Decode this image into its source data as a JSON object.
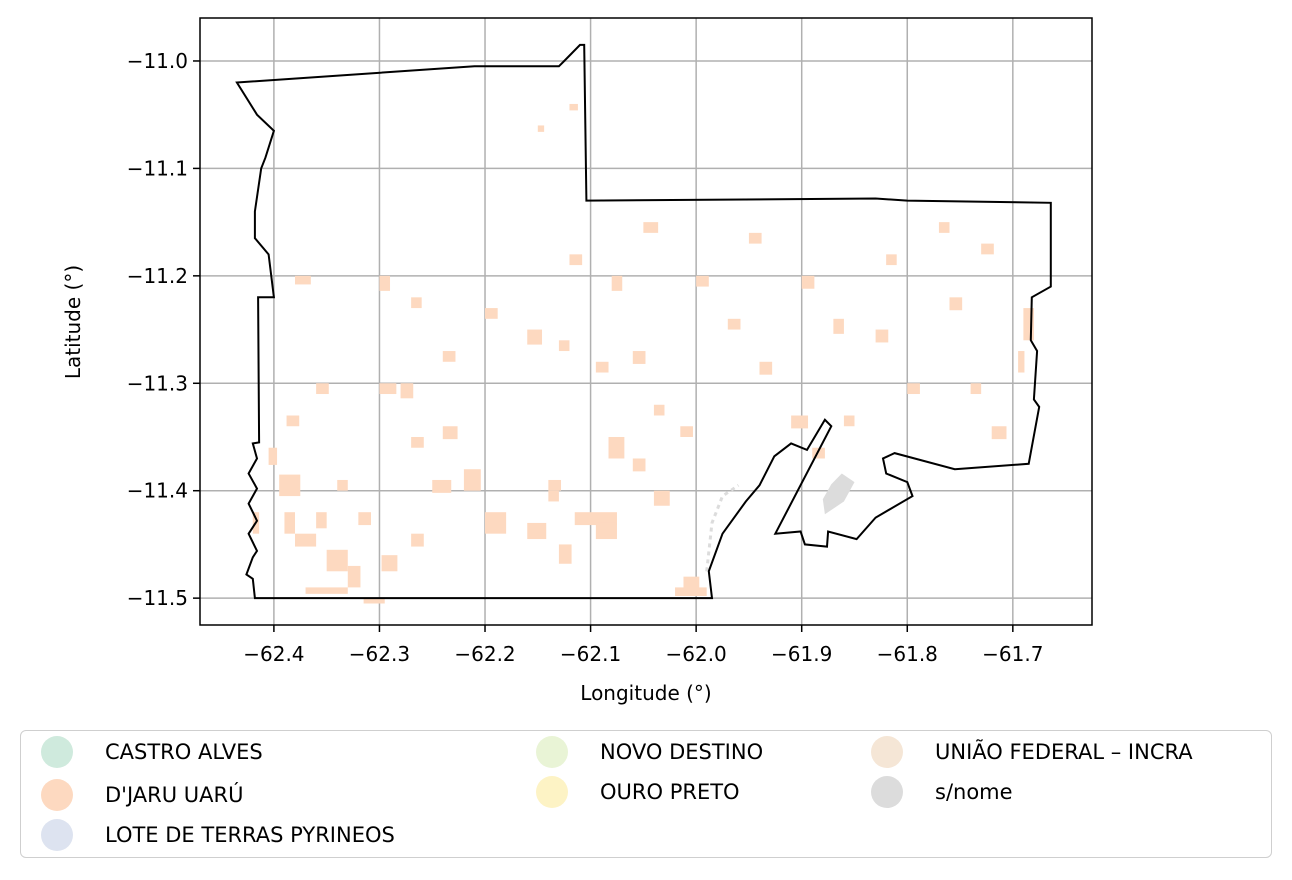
{
  "chart_data": {
    "type": "map",
    "xlabel": "Longitude (°)",
    "ylabel": "Latitude (°)",
    "xlim": [
      -62.47,
      -61.625
    ],
    "ylim": [
      -11.525,
      -10.96
    ],
    "xticks": [
      -62.4,
      -62.3,
      -62.2,
      -62.1,
      -62.0,
      -61.9,
      -61.8,
      -61.7
    ],
    "xtick_labels": [
      "−62.4",
      "−62.3",
      "−62.2",
      "−62.1",
      "−62.0",
      "−61.9",
      "−61.8",
      "−61.7"
    ],
    "yticks": [
      -11.0,
      -11.1,
      -11.2,
      -11.3,
      -11.4,
      -11.5
    ],
    "ytick_labels": [
      "−11.0",
      "−11.1",
      "−11.2",
      "−11.3",
      "−11.4",
      "−11.5"
    ],
    "grid": true,
    "legend_position": "below",
    "boundary": [
      [
        -62.435,
        -11.02
      ],
      [
        -62.21,
        -11.005
      ],
      [
        -62.13,
        -11.005
      ],
      [
        -62.125,
        -11.0
      ],
      [
        -62.11,
        -10.985
      ],
      [
        -62.106,
        -10.985
      ],
      [
        -62.104,
        -11.13
      ],
      [
        -61.83,
        -11.128
      ],
      [
        -61.8,
        -11.13
      ],
      [
        -61.664,
        -11.132
      ],
      [
        -61.664,
        -11.21
      ],
      [
        -61.682,
        -11.22
      ],
      [
        -61.683,
        -11.26
      ],
      [
        -61.677,
        -11.27
      ],
      [
        -61.68,
        -11.315
      ],
      [
        -61.675,
        -11.322
      ],
      [
        -61.685,
        -11.375
      ],
      [
        -61.755,
        -11.38
      ],
      [
        -61.812,
        -11.365
      ],
      [
        -61.823,
        -11.37
      ],
      [
        -61.82,
        -11.384
      ],
      [
        -61.8,
        -11.392
      ],
      [
        -61.795,
        -11.405
      ],
      [
        -61.83,
        -11.425
      ],
      [
        -61.848,
        -11.445
      ],
      [
        -61.875,
        -11.438
      ],
      [
        -61.876,
        -11.452
      ],
      [
        -61.897,
        -11.45
      ],
      [
        -61.901,
        -11.438
      ],
      [
        -61.925,
        -11.44
      ],
      [
        -61.872,
        -11.34
      ],
      [
        -61.878,
        -11.334
      ],
      [
        -61.895,
        -11.362
      ],
      [
        -61.91,
        -11.356
      ],
      [
        -61.926,
        -11.368
      ],
      [
        -61.94,
        -11.395
      ],
      [
        -61.953,
        -11.41
      ],
      [
        -61.975,
        -11.44
      ],
      [
        -61.988,
        -11.475
      ],
      [
        -61.985,
        -11.5
      ],
      [
        -62.418,
        -11.5
      ],
      [
        -62.42,
        -11.482
      ],
      [
        -62.426,
        -11.478
      ],
      [
        -62.42,
        -11.462
      ],
      [
        -62.416,
        -11.456
      ],
      [
        -62.424,
        -11.44
      ],
      [
        -62.416,
        -11.428
      ],
      [
        -62.424,
        -11.412
      ],
      [
        -62.416,
        -11.398
      ],
      [
        -62.424,
        -11.384
      ],
      [
        -62.416,
        -11.37
      ],
      [
        -62.42,
        -11.356
      ],
      [
        -62.414,
        -11.355
      ],
      [
        -62.415,
        -11.22
      ],
      [
        -62.4,
        -11.22
      ],
      [
        -62.405,
        -11.18
      ],
      [
        -62.418,
        -11.165
      ],
      [
        -62.418,
        -11.14
      ],
      [
        -62.412,
        -11.1
      ],
      [
        -62.408,
        -11.09
      ],
      [
        -62.4,
        -11.065
      ],
      [
        -62.416,
        -11.05
      ]
    ],
    "river_line": [
      [
        -61.99,
        -11.475
      ],
      [
        -61.985,
        -11.43
      ],
      [
        -61.975,
        -11.405
      ],
      [
        -61.96,
        -11.395
      ]
    ],
    "snome_patch": [
      [
        -61.862,
        -11.384
      ],
      [
        -61.85,
        -11.392
      ],
      [
        -61.86,
        -11.41
      ],
      [
        -61.878,
        -11.422
      ],
      [
        -61.88,
        -11.408
      ],
      [
        -61.872,
        -11.394
      ]
    ],
    "djaru_patches": [
      [
        -62.405,
        -11.36,
        0.008,
        0.016
      ],
      [
        -62.395,
        -11.385,
        0.02,
        0.02
      ],
      [
        -62.39,
        -11.42,
        0.01,
        0.02
      ],
      [
        -62.388,
        -11.33,
        0.012,
        0.01
      ],
      [
        -62.36,
        -11.42,
        0.01,
        0.015
      ],
      [
        -62.35,
        -11.455,
        0.02,
        0.02
      ],
      [
        -62.37,
        -11.49,
        0.04,
        0.006
      ],
      [
        -62.33,
        -11.47,
        0.012,
        0.02
      ],
      [
        -62.315,
        -11.5,
        0.02,
        0.005
      ],
      [
        -62.298,
        -11.46,
        0.015,
        0.015
      ],
      [
        -62.3,
        -11.3,
        0.016,
        0.01
      ],
      [
        -62.28,
        -11.3,
        0.012,
        0.014
      ],
      [
        -62.24,
        -11.34,
        0.014,
        0.012
      ],
      [
        -62.22,
        -11.38,
        0.016,
        0.02
      ],
      [
        -62.2,
        -11.42,
        0.02,
        0.02
      ],
      [
        -62.16,
        -11.43,
        0.018,
        0.015
      ],
      [
        -62.14,
        -11.4,
        0.01,
        0.01
      ],
      [
        -62.13,
        -11.45,
        0.012,
        0.018
      ],
      [
        -62.115,
        -11.42,
        0.04,
        0.012
      ],
      [
        -62.095,
        -11.43,
        0.02,
        0.015
      ],
      [
        -62.083,
        -11.35,
        0.015,
        0.02
      ],
      [
        -62.06,
        -11.37,
        0.012,
        0.012
      ],
      [
        -62.04,
        -11.4,
        0.015,
        0.014
      ],
      [
        -62.02,
        -11.49,
        0.03,
        0.008
      ],
      [
        -62.012,
        -11.48,
        0.015,
        0.012
      ],
      [
        -62.14,
        -11.39,
        0.012,
        0.01
      ],
      [
        -62.095,
        -11.28,
        0.012,
        0.01
      ],
      [
        -62.06,
        -11.27,
        0.012,
        0.012
      ],
      [
        -62.04,
        -11.32,
        0.01,
        0.01
      ],
      [
        -62.015,
        -11.34,
        0.012,
        0.01
      ],
      [
        -62.27,
        -11.35,
        0.012,
        0.01
      ],
      [
        -62.25,
        -11.39,
        0.018,
        0.012
      ],
      [
        -62.34,
        -11.39,
        0.01,
        0.01
      ],
      [
        -62.36,
        -11.3,
        0.012,
        0.01
      ],
      [
        -62.38,
        -11.2,
        0.015,
        0.008
      ],
      [
        -62.3,
        -11.2,
        0.01,
        0.014
      ],
      [
        -62.27,
        -11.22,
        0.01,
        0.01
      ],
      [
        -62.24,
        -11.27,
        0.012,
        0.01
      ],
      [
        -62.2,
        -11.23,
        0.012,
        0.01
      ],
      [
        -62.16,
        -11.25,
        0.014,
        0.014
      ],
      [
        -62.13,
        -11.26,
        0.01,
        0.01
      ],
      [
        -62.12,
        -11.18,
        0.012,
        0.01
      ],
      [
        -62.08,
        -11.2,
        0.01,
        0.014
      ],
      [
        -62.05,
        -11.15,
        0.014,
        0.01
      ],
      [
        -62.0,
        -11.2,
        0.012,
        0.01
      ],
      [
        -61.97,
        -11.24,
        0.012,
        0.01
      ],
      [
        -61.94,
        -11.28,
        0.012,
        0.012
      ],
      [
        -61.91,
        -11.33,
        0.016,
        0.012
      ],
      [
        -61.89,
        -11.36,
        0.012,
        0.01
      ],
      [
        -61.86,
        -11.33,
        0.01,
        0.01
      ],
      [
        -61.83,
        -11.25,
        0.012,
        0.012
      ],
      [
        -61.8,
        -11.3,
        0.012,
        0.01
      ],
      [
        -61.76,
        -11.22,
        0.012,
        0.012
      ],
      [
        -61.74,
        -11.3,
        0.01,
        0.01
      ],
      [
        -61.72,
        -11.34,
        0.014,
        0.012
      ],
      [
        -61.69,
        -11.23,
        0.01,
        0.03
      ],
      [
        -61.695,
        -11.27,
        0.006,
        0.02
      ],
      [
        -61.73,
        -11.17,
        0.012,
        0.01
      ],
      [
        -61.77,
        -11.15,
        0.01,
        0.01
      ],
      [
        -61.82,
        -11.18,
        0.01,
        0.01
      ],
      [
        -61.95,
        -11.16,
        0.012,
        0.01
      ],
      [
        -61.9,
        -11.2,
        0.012,
        0.012
      ],
      [
        -61.87,
        -11.24,
        0.01,
        0.014
      ],
      [
        -62.15,
        -11.06,
        0.006,
        0.006
      ],
      [
        -62.12,
        -11.04,
        0.008,
        0.006
      ],
      [
        -62.42,
        -11.42,
        0.006,
        0.02
      ],
      [
        -62.38,
        -11.44,
        0.02,
        0.012
      ],
      [
        -62.32,
        -11.42,
        0.012,
        0.012
      ],
      [
        -62.27,
        -11.44,
        0.012,
        0.012
      ]
    ]
  },
  "legend": {
    "items": [
      {
        "label": "CASTRO ALVES",
        "color": "#cfeadd"
      },
      {
        "label": "D'JARU UARÚ",
        "color": "#fdd9c0"
      },
      {
        "label": "LOTE DE TERRAS PYRINEOS",
        "color": "#dde3f0"
      },
      {
        "label": "NOVO DESTINO",
        "color": "#e9f4d6"
      },
      {
        "label": "OURO PRETO",
        "color": "#fdf3c5"
      },
      {
        "label": "UNIÃO FEDERAL – INCRA",
        "color": "#f5e6d6"
      },
      {
        "label": "s/nome",
        "color": "#dcdcdc"
      }
    ]
  }
}
